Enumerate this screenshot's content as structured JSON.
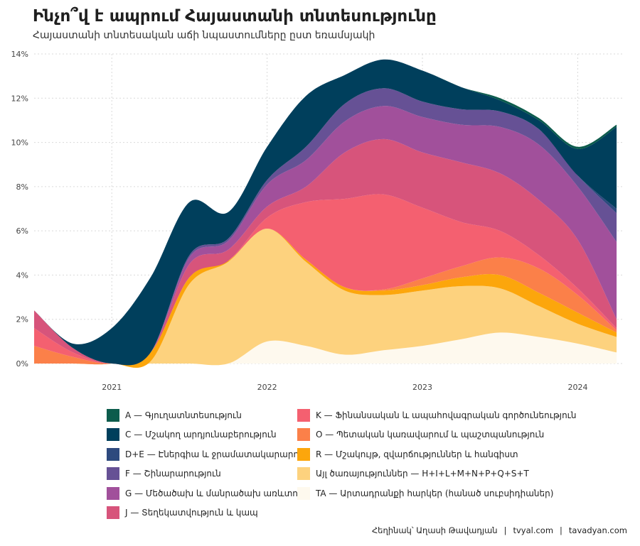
{
  "header": {
    "title": "Ինչո՞վ է ապրում Հայաստանի տնտեսությունը",
    "subtitle": "Հայաստանի տնտեսական աճի նպաստումները ըստ եռամսյակի"
  },
  "caption": {
    "author": "Հեղինակ՝ Աղասի Թավադյան",
    "site1": "tvyal.com",
    "site2": "tavadyan.com",
    "separator": "|"
  },
  "chart_data": {
    "type": "area",
    "stacked": true,
    "x": [
      2020.5,
      2020.75,
      2021.0,
      2021.25,
      2021.5,
      2021.75,
      2022.0,
      2022.25,
      2022.5,
      2022.75,
      2023.0,
      2023.25,
      2023.5,
      2023.75,
      2024.0,
      2024.25
    ],
    "xlim": [
      2020.5,
      2024.3
    ],
    "ylim": [
      0,
      14
    ],
    "x_ticks": [
      {
        "value": 2021,
        "label": "2021"
      },
      {
        "value": 2022,
        "label": "2022"
      },
      {
        "value": 2023,
        "label": "2023"
      },
      {
        "value": 2024,
        "label": "2024"
      }
    ],
    "y_ticks": [
      {
        "value": 0,
        "label": "0%"
      },
      {
        "value": 2,
        "label": "2%"
      },
      {
        "value": 4,
        "label": "4%"
      },
      {
        "value": 6,
        "label": "6%"
      },
      {
        "value": 8,
        "label": "8%"
      },
      {
        "value": 10,
        "label": "10%"
      },
      {
        "value": 12,
        "label": "12%"
      },
      {
        "value": 14,
        "label": "14%"
      }
    ],
    "grid": true,
    "legend_position": "bottom",
    "series": [
      {
        "name": "TA — Արտադրանքի հարկեր (հանած սուբսիդիաներ)",
        "color": "#FEF9EE",
        "values": [
          0,
          0,
          0,
          0,
          0,
          0,
          1.0,
          0.8,
          0.4,
          0.6,
          0.8,
          1.1,
          1.4,
          1.2,
          0.9,
          0.5
        ]
      },
      {
        "name": "Այլ ծառայություններ — H+I+L+M+N+P+Q+S+T",
        "color": "#FDD27E",
        "values": [
          0,
          0,
          0,
          0.1,
          3.6,
          4.6,
          5.1,
          3.8,
          2.9,
          2.5,
          2.5,
          2.4,
          2.0,
          1.4,
          0.9,
          0.7
        ]
      },
      {
        "name": "R — Մշակույթ, զվարճություններ և հանգիստ",
        "color": "#FCA60C",
        "values": [
          0,
          0,
          0,
          0.4,
          0.3,
          0.05,
          0,
          0.1,
          0.15,
          0.2,
          0.25,
          0.4,
          0.6,
          0.6,
          0.5,
          0.2
        ]
      },
      {
        "name": "O — Պետական կառավարում և պաշտպանություն",
        "color": "#FB8049",
        "values": [
          0.8,
          0.3,
          0,
          0,
          0,
          0,
          0,
          0,
          0,
          0.05,
          0.3,
          0.5,
          0.8,
          1.1,
          0.8,
          0.1
        ]
      },
      {
        "name": "K — Ֆինանսական և ապահովագրական գործունեություն",
        "color": "#F46070",
        "values": [
          0.8,
          0.2,
          0,
          0,
          0,
          0,
          0.5,
          2.6,
          4.0,
          4.3,
          3.2,
          2.0,
          1.2,
          0.6,
          0.3,
          0.1
        ]
      },
      {
        "name": "J — Տեղեկատվություն և կապ",
        "color": "#D7547B",
        "values": [
          0.8,
          0.2,
          0,
          0,
          0.6,
          0.5,
          0.5,
          0.7,
          2.1,
          2.5,
          2.5,
          2.7,
          2.6,
          2.5,
          2.2,
          0.4
        ]
      },
      {
        "name": "G — Մեծածախ և մանրածախ առևտուր",
        "color": "#A1509B",
        "values": [
          0,
          0,
          0,
          0,
          0.3,
          0.4,
          1.0,
          1.2,
          1.4,
          1.5,
          1.6,
          1.7,
          2.1,
          2.5,
          2.4,
          3.5
        ]
      },
      {
        "name": "F — Շինարարություն",
        "color": "#665195",
        "values": [
          0,
          0,
          0,
          0,
          0.1,
          0.1,
          0.2,
          0.6,
          0.8,
          0.8,
          0.7,
          0.7,
          0.7,
          0.7,
          0.5,
          1.3
        ]
      },
      {
        "name": "D+E — Էներգիա և ջրամատակարարում",
        "color": "#2E4A7E",
        "values": [
          0,
          0,
          0,
          0,
          0,
          0,
          0,
          0,
          0,
          0,
          0,
          0,
          0,
          0,
          0,
          0.2
        ]
      },
      {
        "name": "C — Մշակող արդյունաբերություն",
        "color": "#003F5C",
        "values": [
          0,
          0.2,
          1.6,
          3.4,
          2.4,
          1.2,
          1.5,
          2.3,
          1.3,
          1.3,
          1.4,
          1.0,
          0.5,
          0.4,
          1.2,
          3.7
        ]
      },
      {
        "name": "A — Գյուղատնտեսություն",
        "color": "#0C5C4C",
        "values": [
          0,
          0,
          0,
          0,
          0,
          0,
          0,
          0,
          0,
          0,
          0,
          0,
          0.1,
          0.1,
          0.1,
          0.1
        ]
      }
    ]
  },
  "legend": {
    "left": [
      {
        "label": "A — Գյուղատնտեսություն",
        "color": "#0C5C4C"
      },
      {
        "label": "C — Մշակող արդյունաբերություն",
        "color": "#003F5C"
      },
      {
        "label": "D+E — Էներգիա և ջրամատակարարում",
        "color": "#2E4A7E"
      },
      {
        "label": "F — Շինարարություն",
        "color": "#665195"
      },
      {
        "label": "G — Մեծածախ և մանրածախ առևտուր",
        "color": "#A1509B"
      },
      {
        "label": "J — Տեղեկատվություն և կապ",
        "color": "#D7547B"
      }
    ],
    "right": [
      {
        "label": "K — Ֆինանսական և ապահովագրական գործունեություն",
        "color": "#F46070"
      },
      {
        "label": "O — Պետական կառավարում և պաշտպանություն",
        "color": "#FB8049"
      },
      {
        "label": "R — Մշակույթ, զվարճություններ և հանգիստ",
        "color": "#FCA60C"
      },
      {
        "label": "Այլ ծառայություններ — H+I+L+M+N+P+Q+S+T",
        "color": "#FDD27E"
      },
      {
        "label": "TA — Արտադրանքի հարկեր (հանած սուբսիդիաներ)",
        "color": "#FEF9EE"
      }
    ]
  }
}
